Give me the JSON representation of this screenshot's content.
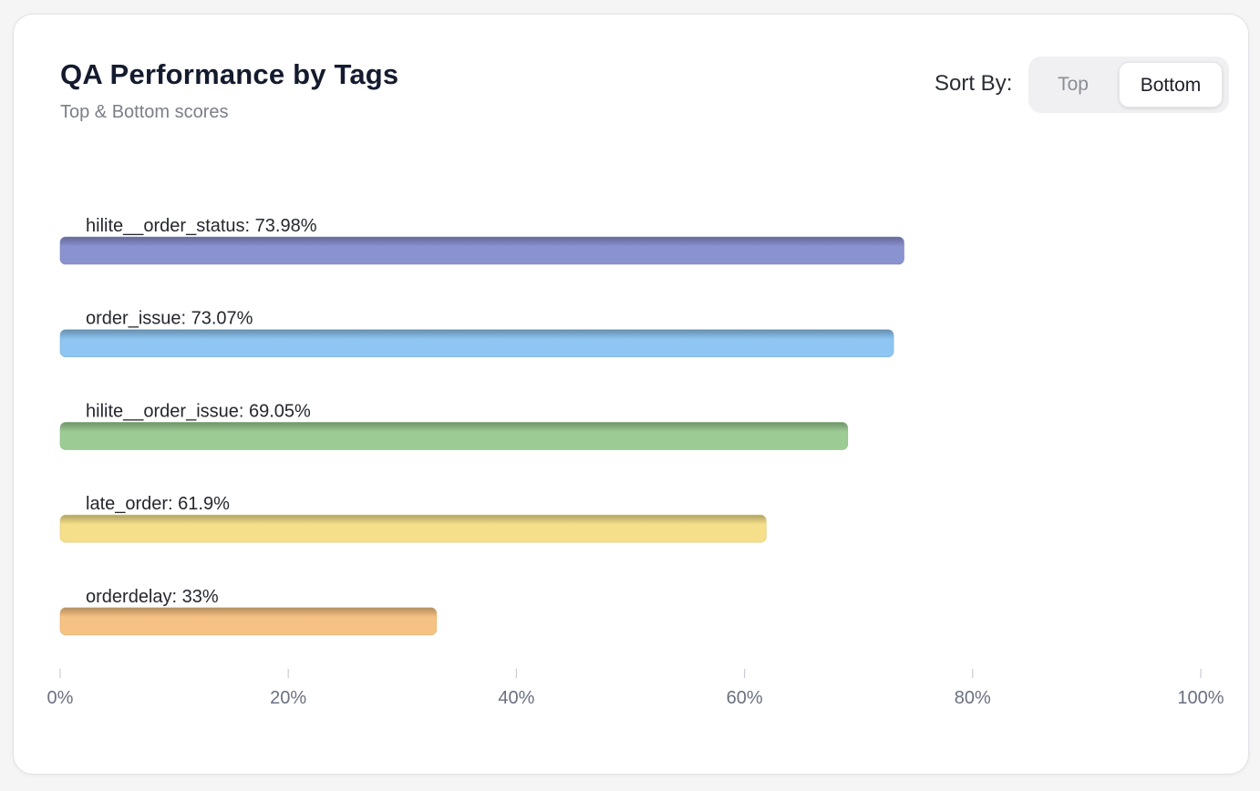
{
  "header": {
    "title": "QA Performance by Tags",
    "subtitle": "Top & Bottom scores"
  },
  "sort": {
    "label": "Sort By:",
    "options": [
      "Top",
      "Bottom"
    ],
    "selected": "Bottom"
  },
  "chart_data": {
    "type": "bar",
    "orientation": "horizontal",
    "title": "QA Performance by Tags",
    "subtitle": "Top & Bottom scores",
    "categories": [
      "hilite__order_status",
      "order_issue",
      "hilite__order_issue",
      "late_order",
      "orderdelay"
    ],
    "values": [
      73.98,
      73.07,
      69.05,
      61.9,
      33
    ],
    "value_labels": [
      "hilite__order_status: 73.98%",
      "order_issue: 73.07%",
      "hilite__order_issue: 69.05%",
      "late_order: 61.9%",
      "orderdelay: 33%"
    ],
    "colors": [
      "#8a92d0",
      "#8ec5f2",
      "#9dcb94",
      "#f5df8a",
      "#f6c283"
    ],
    "xlim": [
      0,
      100
    ],
    "xticks": [
      0,
      20,
      40,
      60,
      80,
      100
    ],
    "xtick_labels": [
      "0%",
      "20%",
      "40%",
      "60%",
      "80%",
      "100%"
    ],
    "xlabel": "",
    "ylabel": "",
    "grid": false
  }
}
